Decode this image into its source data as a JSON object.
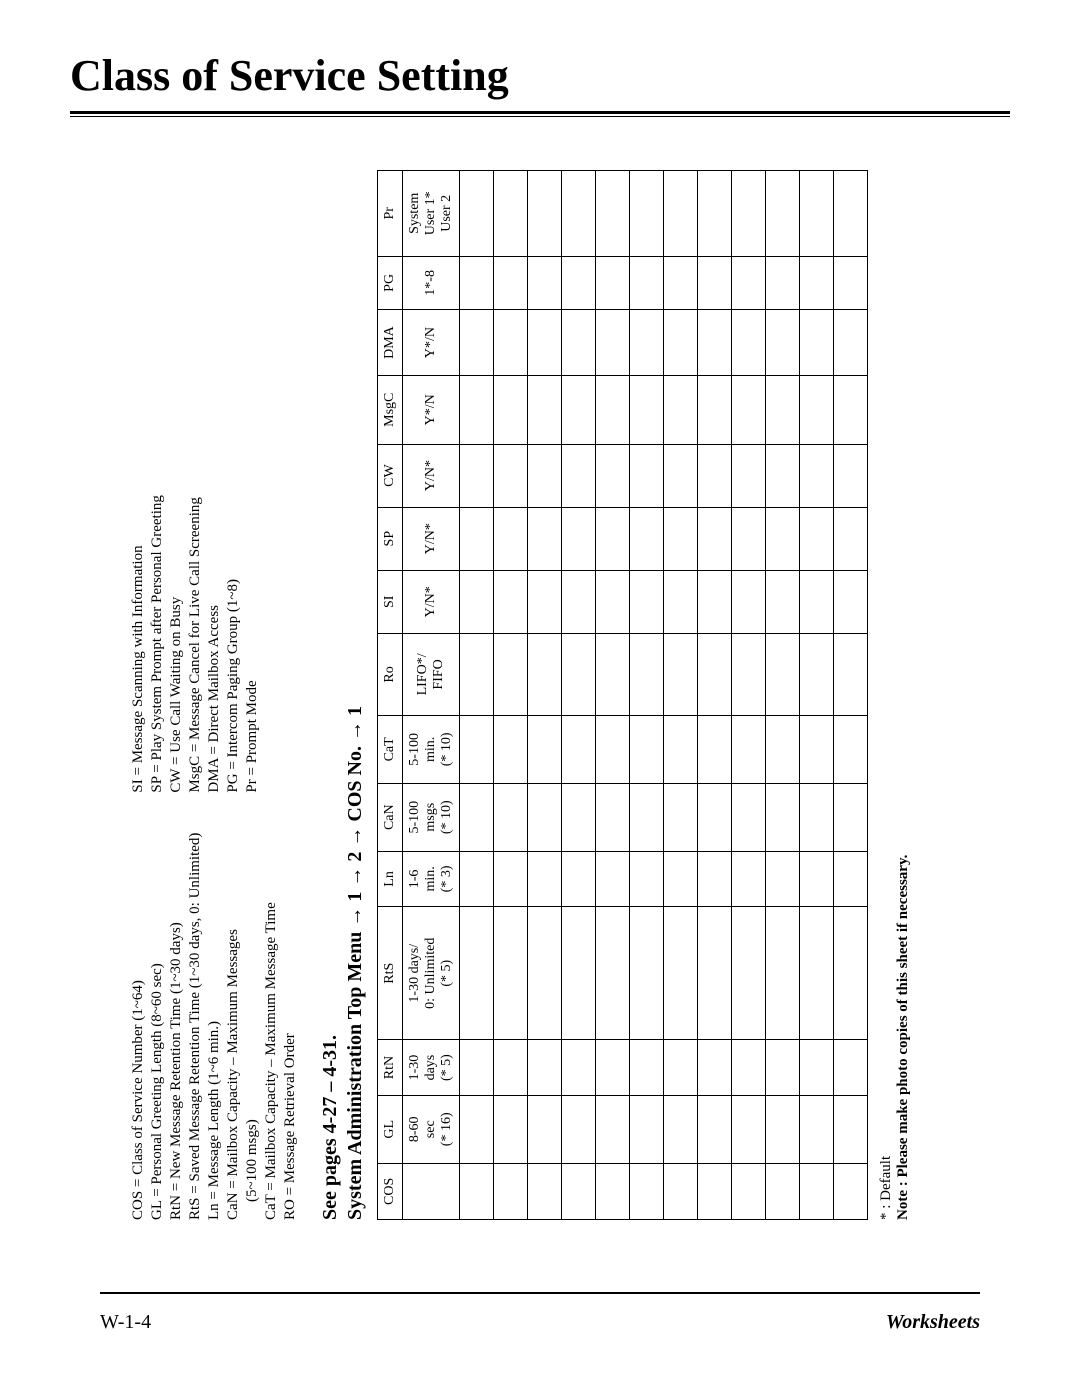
{
  "title": "Class of Service Setting",
  "legend": {
    "left": [
      "COS = Class of Service Number (1~64)",
      "GL = Personal Greeting Length (8~60 sec)",
      "RtN = New Message Retention Time (1~30 days)",
      "RtS = Saved Message Retention Time (1~30 days, 0: Unlimited)",
      "Ln = Message Length (1~6 min.)",
      "CaN = Mailbox Capacity – Maximum Messages",
      "(5~100 msgs)",
      "CaT = Mailbox Capacity – Maximum Message Time",
      "RO = Message Retrieval Order"
    ],
    "right": [
      "SI = Message Scanning with Information",
      "SP = Play System Prompt after Personal Greeting",
      "CW = Use Call Waiting on Busy",
      "MsgC = Message Cancel for Live Call Screening",
      "DMA = Direct Mailbox Access",
      "PG = Intercom Paging Group (1~8)",
      "Pr = Prompt Mode"
    ]
  },
  "subheading": "See pages 4-27 – 4-31.",
  "breadcrumb": "System Administration Top Menu → 1 → 2 → COS No. → 1",
  "table": {
    "headers": [
      "COS",
      "GL",
      "RtN",
      "RtS",
      "Ln",
      "CaN",
      "CaT",
      "Ro",
      "SI",
      "SP",
      "CW",
      "MsgC",
      "DMA",
      "PG",
      "Pr"
    ],
    "subheaders": [
      "",
      "8-60\nsec\n(* 16)",
      "1-30\ndays\n(* 5)",
      "1-30 days/\n0: Unlimited\n(* 5)",
      "1-6\nmin.\n(* 3)",
      "5-100\nmsgs\n(* 10)",
      "5-100\nmin.\n(* 10)",
      "LIFO*/\nFIFO",
      "Y/N*",
      "Y/N*",
      "Y/N*",
      "Y*/N",
      "Y*/N",
      "1*-8",
      "System\nUser 1*\nUser 2"
    ],
    "empty_rows": 12
  },
  "footer_notes": {
    "default_marker": "* : Default",
    "note": "Note : Please make photo copies of this sheet if necessary."
  },
  "page_footer": {
    "left": "W-1-4",
    "right": "Worksheets"
  }
}
